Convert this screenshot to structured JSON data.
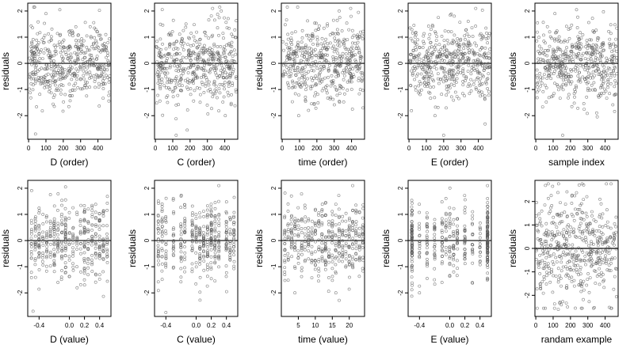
{
  "chart_data": [
    {
      "type": "scatter",
      "xlabel": "D (order)",
      "ylabel": "residuals",
      "xlim": [
        -5,
        475
      ],
      "ylim": [
        -2.9,
        2.3
      ],
      "x_ticks": [
        "0",
        "100",
        "200",
        "300",
        "400"
      ],
      "x_tick_values": [
        0,
        100,
        200,
        300,
        400
      ],
      "y_ticks": [
        "-2",
        "-1",
        "0",
        "1",
        "2"
      ],
      "y_tick_values": [
        -2,
        -1,
        0,
        1,
        2
      ],
      "reference_line_y": 0,
      "x_kind": "order",
      "seed": 11,
      "n": 480,
      "outliers": [
        [
          40,
          -2.7
        ],
        [
          180,
          2.05
        ],
        [
          100,
          1.9
        ]
      ]
    },
    {
      "type": "scatter",
      "xlabel": "C (order)",
      "ylabel": "residuals",
      "xlim": [
        -5,
        475
      ],
      "ylim": [
        -2.9,
        2.3
      ],
      "x_ticks": [
        "0",
        "100",
        "200",
        "300",
        "400"
      ],
      "x_tick_values": [
        0,
        100,
        200,
        300,
        400
      ],
      "y_ticks": [
        "-2",
        "-1",
        "0",
        "1",
        "2"
      ],
      "y_tick_values": [
        -2,
        -1,
        0,
        1,
        2
      ],
      "reference_line_y": 0,
      "x_kind": "order",
      "seed": 23,
      "n": 480,
      "outliers": [
        [
          120,
          -2.75
        ],
        [
          330,
          2.1
        ],
        [
          380,
          2.0
        ]
      ]
    },
    {
      "type": "scatter",
      "xlabel": "time (order)",
      "ylabel": "residuals",
      "xlim": [
        -5,
        475
      ],
      "ylim": [
        -2.9,
        2.3
      ],
      "x_ticks": [
        "0",
        "100",
        "200",
        "300",
        "400"
      ],
      "x_tick_values": [
        0,
        100,
        200,
        300,
        400
      ],
      "y_ticks": [
        "-2",
        "-1",
        "0",
        "1",
        "2"
      ],
      "y_tick_values": [
        -2,
        -1,
        0,
        1,
        2
      ],
      "reference_line_y": 0,
      "x_kind": "order",
      "seed": 37,
      "n": 480,
      "outliers": [
        [
          95,
          -2.0
        ],
        [
          395,
          2.1
        ],
        [
          440,
          1.95
        ]
      ]
    },
    {
      "type": "scatter",
      "xlabel": "E (order)",
      "ylabel": "residuals",
      "xlim": [
        -5,
        475
      ],
      "ylim": [
        -2.9,
        2.3
      ],
      "x_ticks": [
        "0",
        "100",
        "200",
        "300",
        "400"
      ],
      "x_tick_values": [
        0,
        100,
        200,
        300,
        400
      ],
      "y_ticks": [
        "-2",
        "-1",
        "0",
        "1",
        "2"
      ],
      "y_tick_values": [
        -2,
        -1,
        0,
        1,
        2
      ],
      "reference_line_y": 0,
      "x_kind": "order",
      "seed": 41,
      "n": 480,
      "outliers": [
        [
          200,
          -2.75
        ],
        [
          385,
          2.1
        ],
        [
          150,
          -2.0
        ]
      ]
    },
    {
      "type": "scatter",
      "xlabel": "sample index",
      "ylabel": "residuals",
      "xlim": [
        -5,
        475
      ],
      "ylim": [
        -2.9,
        2.3
      ],
      "x_ticks": [
        "0",
        "100",
        "200",
        "300",
        "400"
      ],
      "x_tick_values": [
        0,
        100,
        200,
        300,
        400
      ],
      "y_ticks": [
        "-2",
        "-1",
        "0",
        "1",
        "2"
      ],
      "y_tick_values": [
        -2,
        -1,
        0,
        1,
        2
      ],
      "reference_line_y": 0,
      "x_kind": "order",
      "seed": 53,
      "n": 480,
      "outliers": [
        [
          155,
          -2.75
        ],
        [
          235,
          2.05
        ],
        [
          110,
          1.9
        ]
      ]
    },
    {
      "type": "scatter",
      "xlabel": "D (value)",
      "ylabel": "residuals",
      "xlim": [
        -0.55,
        0.55
      ],
      "ylim": [
        -2.9,
        2.3
      ],
      "x_ticks": [
        "-0.4",
        "0.0",
        "0.2",
        "0.4"
      ],
      "x_tick_values": [
        -0.4,
        0.0,
        0.2,
        0.4
      ],
      "y_ticks": [
        "-2",
        "-1",
        "0",
        "1",
        "2"
      ],
      "y_tick_values": [
        -2,
        -1,
        0,
        1,
        2
      ],
      "reference_line_y": 0,
      "x_kind": "levels",
      "x_levels": [
        -0.5,
        -0.45,
        -0.4,
        -0.35,
        -0.3,
        -0.25,
        -0.2,
        -0.15,
        -0.1,
        -0.05,
        0.0,
        0.05,
        0.1,
        0.15,
        0.2,
        0.25,
        0.3,
        0.35,
        0.4,
        0.45,
        0.5
      ],
      "seed": 61,
      "n": 420,
      "outliers": [
        [
          -0.48,
          -2.7
        ],
        [
          -0.05,
          2.05
        ]
      ]
    },
    {
      "type": "scatter",
      "xlabel": "C (value)",
      "ylabel": "residuals",
      "xlim": [
        -0.55,
        0.55
      ],
      "ylim": [
        -2.9,
        2.3
      ],
      "x_ticks": [
        "-0.4",
        "0.0",
        "0.2",
        "0.4"
      ],
      "x_tick_values": [
        -0.4,
        0.0,
        0.2,
        0.4
      ],
      "y_ticks": [
        "-2",
        "-1",
        "0",
        "1",
        "2"
      ],
      "y_tick_values": [
        -2,
        -1,
        0,
        1,
        2
      ],
      "reference_line_y": 0,
      "x_kind": "levels",
      "x_levels": [
        -0.5,
        -0.45,
        -0.4,
        -0.3,
        -0.2,
        -0.15,
        -0.05,
        0.0,
        0.05,
        0.1,
        0.15,
        0.2,
        0.25,
        0.3,
        0.4,
        0.45,
        0.5
      ],
      "seed": 71,
      "n": 420,
      "outliers": [
        [
          -0.4,
          -2.75
        ],
        [
          0.3,
          2.1
        ]
      ]
    },
    {
      "type": "scatter",
      "xlabel": "time (value)",
      "ylabel": "residuals",
      "xlim": [
        0,
        24.5
      ],
      "ylim": [
        -2.9,
        2.3
      ],
      "x_ticks": [
        "5",
        "10",
        "15",
        "20"
      ],
      "x_tick_values": [
        5,
        10,
        15,
        20
      ],
      "y_ticks": [
        "-2",
        "-1",
        "0",
        "1",
        "2"
      ],
      "y_tick_values": [
        -2,
        -1,
        0,
        1,
        2
      ],
      "reference_line_y": 0,
      "x_kind": "levels",
      "x_levels": [
        1,
        2,
        3,
        4,
        5,
        6,
        7,
        8,
        9,
        10,
        11,
        12,
        13,
        14,
        15,
        16,
        17,
        18,
        19,
        20,
        21,
        22,
        23,
        24
      ],
      "seed": 83,
      "n": 420,
      "outliers": [
        [
          4,
          -2.0
        ],
        [
          21,
          2.1
        ]
      ]
    },
    {
      "type": "scatter",
      "xlabel": "E (value)",
      "ylabel": "residuals",
      "xlim": [
        -0.55,
        0.55
      ],
      "ylim": [
        -2.9,
        2.3
      ],
      "x_ticks": [
        "-0.4",
        "0.0",
        "0.2",
        "0.4"
      ],
      "x_tick_values": [
        -0.4,
        0.0,
        0.2,
        0.4
      ],
      "y_ticks": [
        "-2",
        "-1",
        "0",
        "1",
        "2"
      ],
      "y_tick_values": [
        -2,
        -1,
        0,
        1,
        2
      ],
      "reference_line_y": 0,
      "x_kind": "levels",
      "x_levels": [
        -0.5,
        -0.5,
        -0.5,
        -0.5,
        -0.4,
        -0.3,
        -0.2,
        -0.1,
        -0.05,
        0.0,
        0.05,
        0.1,
        0.2,
        0.3,
        0.4,
        0.5,
        0.5,
        0.5,
        0.5
      ],
      "seed": 97,
      "n": 420,
      "outliers": [
        [
          -0.4,
          -2.0
        ],
        [
          0.5,
          2.1
        ]
      ]
    },
    {
      "type": "scatter",
      "xlabel": "randam example",
      "ylabel": "residuals",
      "xlim": [
        -5,
        475
      ],
      "ylim": [
        -2.9,
        2.9
      ],
      "x_ticks": [
        "0",
        "100",
        "200",
        "300",
        "400"
      ],
      "x_tick_values": [
        0,
        100,
        200,
        300,
        400
      ],
      "y_ticks": [
        "-2",
        "-1",
        "0",
        "1",
        "2"
      ],
      "y_tick_values": [
        -2,
        -1,
        0,
        1,
        2
      ],
      "reference_line_y": 0,
      "x_kind": "order",
      "seed": 101,
      "n": 480,
      "spread": 1.15,
      "outliers": [
        [
          130,
          -2.6
        ],
        [
          250,
          2.7
        ]
      ]
    }
  ]
}
